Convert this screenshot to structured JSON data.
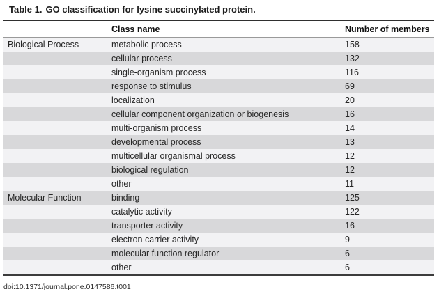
{
  "title": {
    "label": "Table 1.",
    "text": "GO classification for lysine succinylated protein."
  },
  "table": {
    "columns": {
      "category": "",
      "class_name": "Class name",
      "members": "Number of members"
    },
    "sections": [
      {
        "category": "Biological Process",
        "rows": [
          {
            "name": "metabolic process",
            "count": "158"
          },
          {
            "name": "cellular process",
            "count": "132"
          },
          {
            "name": "single-organism process",
            "count": "116"
          },
          {
            "name": "response to stimulus",
            "count": "69"
          },
          {
            "name": "localization",
            "count": "20"
          },
          {
            "name": "cellular component organization or biogenesis",
            "count": "16"
          },
          {
            "name": "multi-organism process",
            "count": "14"
          },
          {
            "name": "developmental process",
            "count": "13"
          },
          {
            "name": "multicellular organismal process",
            "count": "12"
          },
          {
            "name": "biological regulation",
            "count": "12"
          },
          {
            "name": "other",
            "count": "11"
          }
        ]
      },
      {
        "category": "Molecular Function",
        "rows": [
          {
            "name": "binding",
            "count": "125"
          },
          {
            "name": "catalytic activity",
            "count": "122"
          },
          {
            "name": "transporter activity",
            "count": "16"
          },
          {
            "name": "electron carrier activity",
            "count": "9"
          },
          {
            "name": "molecular function regulator",
            "count": "6"
          },
          {
            "name": "other",
            "count": "6"
          }
        ]
      }
    ]
  },
  "footer": {
    "doi": "doi:10.1371/journal.pone.0147586.t001"
  },
  "colors": {
    "row_light": "#f2f2f4",
    "row_dark": "#d8d8da",
    "rule_dark": "#2f2f2f",
    "rule_light": "#9a9a9a",
    "text": "#262626"
  }
}
